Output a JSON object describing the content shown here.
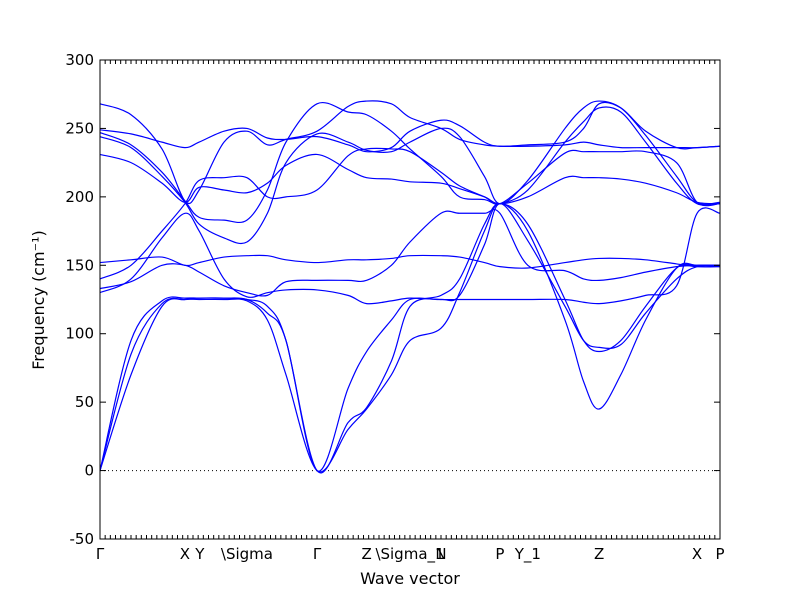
{
  "chart_data": {
    "type": "line",
    "xlabel": "Wave vector",
    "ylabel": "Frequency (cm⁻¹)",
    "ylim": [
      -50,
      300
    ],
    "yticks": [
      -50,
      0,
      50,
      100,
      150,
      200,
      250,
      300
    ],
    "xlim": [
      0,
      1
    ],
    "xticks": [
      {
        "x": 0.0,
        "label": "Γ"
      },
      {
        "x": 0.137,
        "label": "X"
      },
      {
        "x": 0.161,
        "label": "Y"
      },
      {
        "x": 0.237,
        "label": "\\Sigma"
      },
      {
        "x": 0.35,
        "label": "Γ"
      },
      {
        "x": 0.43,
        "label": "Z"
      },
      {
        "x": 0.5,
        "label": "\\Sigma_1"
      },
      {
        "x": 0.55,
        "label": "N"
      },
      {
        "x": 0.645,
        "label": "P"
      },
      {
        "x": 0.69,
        "label": "Y_1"
      },
      {
        "x": 0.805,
        "label": "Z"
      },
      {
        "x": 0.963,
        "label": "X"
      },
      {
        "x": 1.0,
        "label": "P"
      }
    ],
    "zero_line": true,
    "series": [
      {
        "x": [
          0,
          0.05,
          0.1,
          0.137,
          0.16,
          0.2,
          0.237,
          0.27,
          0.3,
          0.35,
          0.4,
          0.43,
          0.47,
          0.5,
          0.55,
          0.58,
          0.62,
          0.645,
          0.69,
          0.75,
          0.78,
          0.805,
          0.84,
          0.88,
          0.93,
          0.963,
          1.0
        ],
        "y": [
          0,
          85,
          122,
          125,
          125,
          125,
          124,
          110,
          70,
          0,
          30,
          45,
          70,
          95,
          104,
          130,
          175,
          195,
          175,
          110,
          65,
          45,
          70,
          110,
          148,
          150,
          150
        ]
      },
      {
        "x": [
          0,
          0.05,
          0.1,
          0.137,
          0.16,
          0.2,
          0.237,
          0.27,
          0.3,
          0.35,
          0.4,
          0.43,
          0.47,
          0.5,
          0.55,
          0.58,
          0.62,
          0.645,
          0.69,
          0.75,
          0.78,
          0.805,
          0.84,
          0.88,
          0.93,
          0.963,
          1.0
        ],
        "y": [
          0,
          95,
          124,
          126,
          126,
          126,
          125,
          120,
          95,
          0,
          35,
          46,
          80,
          120,
          128,
          140,
          180,
          195,
          180,
          125,
          95,
          87,
          95,
          120,
          148,
          150,
          150
        ]
      },
      {
        "x": [
          0,
          0.05,
          0.1,
          0.137,
          0.16,
          0.2,
          0.237,
          0.27,
          0.3,
          0.35,
          0.4,
          0.43,
          0.47,
          0.5,
          0.55,
          0.58,
          0.62,
          0.645,
          0.69,
          0.75,
          0.78,
          0.805,
          0.84,
          0.88,
          0.93,
          0.963,
          1.0
        ],
        "y": [
          130,
          140,
          170,
          188,
          175,
          140,
          127,
          130,
          132,
          132,
          128,
          122,
          124,
          126,
          125,
          125,
          125,
          125,
          125,
          125,
          123,
          122,
          124,
          128,
          135,
          188,
          188
        ]
      },
      {
        "x": [
          0,
          0.05,
          0.1,
          0.137,
          0.16,
          0.2,
          0.237,
          0.27,
          0.3,
          0.35,
          0.4,
          0.43,
          0.47,
          0.5,
          0.55,
          0.58,
          0.62,
          0.645,
          0.69,
          0.75,
          0.78,
          0.805,
          0.84,
          0.88,
          0.93,
          0.963,
          1.0
        ],
        "y": [
          133,
          138,
          150,
          150,
          145,
          135,
          130,
          128,
          138,
          139,
          139,
          139,
          150,
          167,
          188,
          188,
          188,
          188,
          150,
          146,
          140,
          139,
          141,
          145,
          149,
          150,
          150
        ]
      },
      {
        "x": [
          0,
          0.05,
          0.1,
          0.137,
          0.16,
          0.2,
          0.237,
          0.27,
          0.3,
          0.35,
          0.4,
          0.43,
          0.47,
          0.5,
          0.55,
          0.58,
          0.62,
          0.645,
          0.69,
          0.75,
          0.78,
          0.805,
          0.84,
          0.88,
          0.93,
          0.963,
          1.0
        ],
        "y": [
          152,
          154,
          156,
          150,
          152,
          156,
          157,
          157,
          154,
          152,
          154,
          154,
          155,
          157,
          157,
          156,
          152,
          149,
          148,
          152,
          154,
          155,
          155,
          154,
          151,
          149,
          149
        ]
      },
      {
        "x": [
          0,
          0.05,
          0.1,
          0.137,
          0.16,
          0.2,
          0.237,
          0.27,
          0.3,
          0.35,
          0.4,
          0.43,
          0.47,
          0.5,
          0.55,
          0.58,
          0.62,
          0.645,
          0.69,
          0.75,
          0.78,
          0.805,
          0.84,
          0.88,
          0.93,
          0.963,
          1.0
        ],
        "y": [
          140,
          150,
          175,
          195,
          212,
          214,
          214,
          200,
          200,
          205,
          230,
          235,
          235,
          233,
          218,
          208,
          200,
          195,
          210,
          232,
          233,
          233,
          233,
          233,
          225,
          196,
          195
        ]
      },
      {
        "x": [
          0,
          0.05,
          0.1,
          0.137,
          0.16,
          0.2,
          0.237,
          0.27,
          0.3,
          0.35,
          0.4,
          0.43,
          0.47,
          0.5,
          0.55,
          0.58,
          0.62,
          0.645,
          0.69,
          0.75,
          0.78,
          0.805,
          0.84,
          0.88,
          0.93,
          0.963,
          1.0
        ],
        "y": [
          231,
          225,
          210,
          196,
          207,
          205,
          203,
          210,
          223,
          231,
          220,
          214,
          213,
          211,
          210,
          206,
          200,
          195,
          200,
          214,
          214,
          214,
          213,
          210,
          203,
          196,
          195
        ]
      },
      {
        "x": [
          0,
          0.05,
          0.1,
          0.137,
          0.16,
          0.2,
          0.237,
          0.27,
          0.3,
          0.35,
          0.4,
          0.43,
          0.47,
          0.5,
          0.55,
          0.58,
          0.62,
          0.645,
          0.69,
          0.75,
          0.78,
          0.805,
          0.84,
          0.88,
          0.93,
          0.963,
          1.0
        ],
        "y": [
          244,
          236,
          215,
          196,
          180,
          170,
          167,
          188,
          225,
          246,
          240,
          234,
          233,
          240,
          250,
          244,
          215,
          195,
          212,
          250,
          265,
          270,
          265,
          245,
          215,
          196,
          196
        ]
      },
      {
        "x": [
          0,
          0.05,
          0.1,
          0.137,
          0.16,
          0.2,
          0.237,
          0.27,
          0.3,
          0.35,
          0.4,
          0.43,
          0.47,
          0.5,
          0.55,
          0.58,
          0.62,
          0.645,
          0.69,
          0.75,
          0.78,
          0.805,
          0.84,
          0.88,
          0.93,
          0.963,
          1.0
        ],
        "y": [
          247,
          238,
          218,
          197,
          185,
          183,
          183,
          205,
          240,
          268,
          262,
          260,
          248,
          235,
          215,
          200,
          198,
          195,
          205,
          240,
          255,
          265,
          262,
          240,
          210,
          195,
          195
        ]
      },
      {
        "x": [
          0,
          0.05,
          0.1,
          0.137,
          0.16,
          0.2,
          0.237,
          0.27,
          0.3,
          0.35,
          0.4,
          0.43,
          0.47,
          0.5,
          0.55,
          0.58,
          0.62,
          0.645,
          0.69,
          0.75,
          0.78,
          0.805,
          0.84,
          0.88,
          0.93,
          0.963,
          1.0
        ],
        "y": [
          268,
          260,
          235,
          197,
          205,
          240,
          248,
          238,
          242,
          248,
          266,
          270,
          268,
          258,
          250,
          242,
          238,
          237,
          237,
          238,
          240,
          238,
          236,
          236,
          236,
          236,
          237
        ]
      },
      {
        "x": [
          0,
          0.05,
          0.1,
          0.137,
          0.16,
          0.2,
          0.237,
          0.27,
          0.3,
          0.35,
          0.4,
          0.43,
          0.47,
          0.5,
          0.55,
          0.58,
          0.62,
          0.645,
          0.69,
          0.75,
          0.78,
          0.805,
          0.84,
          0.88,
          0.93,
          0.963,
          1.0
        ],
        "y": [
          249,
          246,
          240,
          236,
          240,
          248,
          250,
          243,
          242,
          244,
          238,
          233,
          236,
          248,
          256,
          252,
          240,
          237,
          238,
          240,
          250,
          268,
          265,
          248,
          236,
          236,
          237
        ]
      },
      {
        "x": [
          0,
          0.05,
          0.1,
          0.137,
          0.16,
          0.2,
          0.237,
          0.27,
          0.3,
          0.35,
          0.4,
          0.43,
          0.47,
          0.5,
          0.55,
          0.58,
          0.62,
          0.645,
          0.69,
          0.75,
          0.78,
          0.805,
          0.84,
          0.88,
          0.93,
          0.963,
          1.0
        ],
        "y": [
          0,
          70,
          120,
          125,
          126,
          126,
          125,
          115,
          95,
          0,
          60,
          87,
          110,
          125,
          125,
          128,
          165,
          195,
          168,
          120,
          95,
          90,
          92,
          115,
          140,
          149,
          149
        ]
      }
    ]
  }
}
